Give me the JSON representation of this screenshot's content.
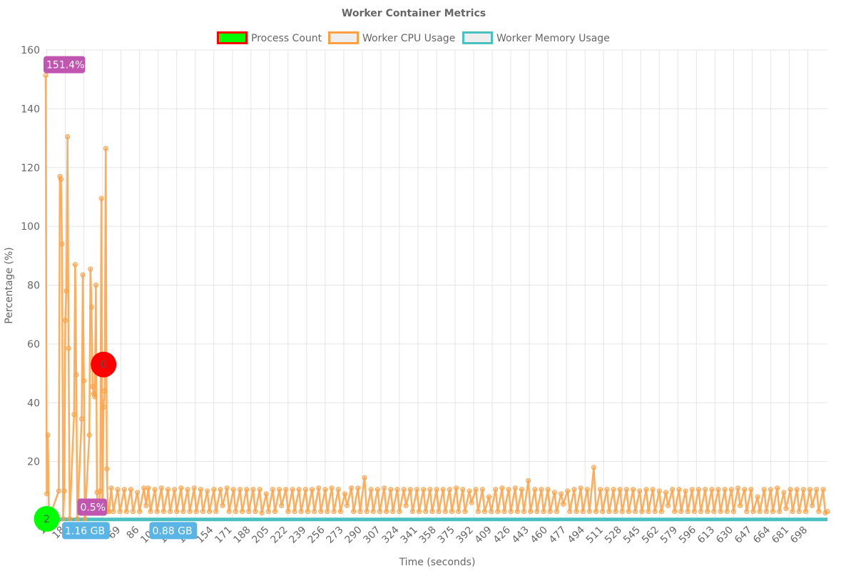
{
  "chart_data": {
    "type": "line",
    "title": "Worker Container Metrics",
    "xlabel": "Time (seconds)",
    "ylabel": "Percentage (%)",
    "xlim": [
      0,
      716
    ],
    "ylim": [
      0,
      160
    ],
    "y_ticks": [
      0,
      20,
      40,
      60,
      80,
      100,
      120,
      140,
      160
    ],
    "x_ticks": [
      1,
      18,
      35,
      52,
      69,
      86,
      103,
      120,
      137,
      154,
      171,
      188,
      205,
      222,
      239,
      256,
      273,
      290,
      307,
      324,
      341,
      358,
      375,
      392,
      409,
      426,
      443,
      460,
      477,
      494,
      511,
      528,
      545,
      562,
      579,
      596,
      613,
      630,
      647,
      664,
      681,
      698
    ],
    "grid": true,
    "legend_position": "top",
    "series": [
      {
        "name": "Process Count",
        "color": "#00ff00",
        "border": "#ff0000",
        "points": [
          [
            1,
            0.5
          ],
          [
            53,
            53
          ]
        ],
        "point_labels": [
          "2",
          "0"
        ],
        "point_colors": [
          "#00ff00",
          "#ff0000"
        ]
      },
      {
        "name": "Worker CPU Usage",
        "color": "#ff9f40",
        "points": [
          [
            0,
            151.4
          ],
          [
            1,
            9
          ],
          [
            2,
            29
          ],
          [
            3,
            0.5
          ],
          [
            12,
            10
          ],
          [
            13,
            117
          ],
          [
            14,
            116
          ],
          [
            15,
            94
          ],
          [
            16,
            0.5
          ],
          [
            17,
            10
          ],
          [
            18,
            68
          ],
          [
            19,
            78
          ],
          [
            20,
            130.5
          ],
          [
            21,
            58.5
          ],
          [
            22,
            0.5
          ],
          [
            26,
            36
          ],
          [
            27,
            87
          ],
          [
            28,
            49.5
          ],
          [
            29,
            0.5
          ],
          [
            33,
            34.5
          ],
          [
            34,
            83.5
          ],
          [
            35,
            47.5
          ],
          [
            36,
            0.5
          ],
          [
            40,
            29
          ],
          [
            41,
            85.5
          ],
          [
            42,
            72.5
          ],
          [
            43,
            45.5
          ],
          [
            44,
            43
          ],
          [
            45,
            42
          ],
          [
            46,
            80
          ],
          [
            47,
            9.5
          ],
          [
            48,
            3
          ],
          [
            50,
            10
          ],
          [
            51,
            109.5
          ],
          [
            52,
            3.5
          ],
          [
            53,
            38.5
          ],
          [
            54,
            44
          ],
          [
            55,
            126.5
          ],
          [
            56,
            17.5
          ],
          [
            57,
            3
          ],
          [
            58,
            3
          ],
          [
            60,
            11
          ],
          [
            62,
            3
          ],
          [
            66,
            10.5
          ],
          [
            68,
            3
          ],
          [
            72,
            10.5
          ],
          [
            74,
            3
          ],
          [
            78,
            10.5
          ],
          [
            80,
            3
          ],
          [
            84,
            9.5
          ],
          [
            86,
            3
          ],
          [
            90,
            11
          ],
          [
            92,
            5
          ],
          [
            94,
            11
          ],
          [
            96,
            3
          ],
          [
            100,
            10.5
          ],
          [
            102,
            3
          ],
          [
            106,
            11
          ],
          [
            108,
            3
          ],
          [
            112,
            10.5
          ],
          [
            114,
            3
          ],
          [
            118,
            10.5
          ],
          [
            120,
            3
          ],
          [
            124,
            11
          ],
          [
            126,
            3
          ],
          [
            130,
            10.5
          ],
          [
            132,
            3
          ],
          [
            136,
            11
          ],
          [
            138,
            3
          ],
          [
            142,
            10.5
          ],
          [
            144,
            3
          ],
          [
            148,
            10
          ],
          [
            150,
            3
          ],
          [
            154,
            10.5
          ],
          [
            156,
            3
          ],
          [
            160,
            10.5
          ],
          [
            162,
            5
          ],
          [
            166,
            11
          ],
          [
            168,
            3
          ],
          [
            172,
            10.5
          ],
          [
            174,
            3
          ],
          [
            178,
            10.5
          ],
          [
            180,
            3
          ],
          [
            184,
            10.5
          ],
          [
            186,
            3
          ],
          [
            190,
            10.5
          ],
          [
            192,
            3
          ],
          [
            196,
            10.5
          ],
          [
            198,
            2.5
          ],
          [
            202,
            9
          ],
          [
            204,
            3
          ],
          [
            208,
            10.5
          ],
          [
            210,
            3
          ],
          [
            214,
            10.5
          ],
          [
            216,
            5
          ],
          [
            220,
            10.5
          ],
          [
            222,
            3
          ],
          [
            226,
            10.5
          ],
          [
            228,
            3
          ],
          [
            232,
            10.5
          ],
          [
            234,
            3
          ],
          [
            238,
            10.5
          ],
          [
            240,
            3
          ],
          [
            244,
            10.5
          ],
          [
            246,
            3
          ],
          [
            250,
            11
          ],
          [
            252,
            3
          ],
          [
            256,
            10.5
          ],
          [
            258,
            3
          ],
          [
            262,
            11
          ],
          [
            264,
            3
          ],
          [
            268,
            10.5
          ],
          [
            270,
            3
          ],
          [
            274,
            9
          ],
          [
            276,
            5
          ],
          [
            280,
            11
          ],
          [
            282,
            3
          ],
          [
            286,
            11
          ],
          [
            288,
            3
          ],
          [
            292,
            14.5
          ],
          [
            294,
            3
          ],
          [
            298,
            10.5
          ],
          [
            300,
            3
          ],
          [
            304,
            10.5
          ],
          [
            306,
            3
          ],
          [
            310,
            11
          ],
          [
            312,
            3
          ],
          [
            316,
            10.5
          ],
          [
            318,
            3
          ],
          [
            322,
            10.5
          ],
          [
            324,
            3
          ],
          [
            328,
            10.5
          ],
          [
            330,
            5
          ],
          [
            334,
            10.5
          ],
          [
            336,
            3
          ],
          [
            340,
            10.5
          ],
          [
            342,
            3
          ],
          [
            346,
            10.5
          ],
          [
            348,
            3
          ],
          [
            352,
            10.5
          ],
          [
            354,
            3
          ],
          [
            358,
            10.5
          ],
          [
            360,
            3
          ],
          [
            364,
            10.5
          ],
          [
            366,
            3
          ],
          [
            370,
            10.5
          ],
          [
            372,
            3
          ],
          [
            376,
            11
          ],
          [
            378,
            3
          ],
          [
            382,
            10.5
          ],
          [
            384,
            3
          ],
          [
            388,
            10
          ],
          [
            390,
            6
          ],
          [
            394,
            10.5
          ],
          [
            396,
            3
          ],
          [
            400,
            10.5
          ],
          [
            402,
            3
          ],
          [
            406,
            8
          ],
          [
            408,
            3
          ],
          [
            412,
            10.5
          ],
          [
            414,
            3
          ],
          [
            418,
            11
          ],
          [
            420,
            3
          ],
          [
            424,
            10.5
          ],
          [
            426,
            3
          ],
          [
            430,
            11
          ],
          [
            432,
            3
          ],
          [
            436,
            10.5
          ],
          [
            438,
            3
          ],
          [
            442,
            13.5
          ],
          [
            444,
            3
          ],
          [
            448,
            10.5
          ],
          [
            450,
            3
          ],
          [
            454,
            10.5
          ],
          [
            456,
            3
          ],
          [
            460,
            10.5
          ],
          [
            462,
            3
          ],
          [
            466,
            9.5
          ],
          [
            468,
            3
          ],
          [
            472,
            9
          ],
          [
            474,
            5.5
          ],
          [
            478,
            10
          ],
          [
            480,
            3
          ],
          [
            484,
            10.5
          ],
          [
            486,
            3
          ],
          [
            490,
            11
          ],
          [
            492,
            3
          ],
          [
            496,
            10.5
          ],
          [
            498,
            3
          ],
          [
            502,
            18
          ],
          [
            504,
            3
          ],
          [
            508,
            10.5
          ],
          [
            510,
            3
          ],
          [
            514,
            10.5
          ],
          [
            516,
            3
          ],
          [
            520,
            10.5
          ],
          [
            522,
            3
          ],
          [
            526,
            10.5
          ],
          [
            528,
            3
          ],
          [
            532,
            10.5
          ],
          [
            534,
            3
          ],
          [
            538,
            10.5
          ],
          [
            540,
            3
          ],
          [
            544,
            10
          ],
          [
            546,
            3
          ],
          [
            550,
            10.5
          ],
          [
            552,
            3
          ],
          [
            556,
            10.5
          ],
          [
            558,
            3
          ],
          [
            562,
            10
          ],
          [
            564,
            3
          ],
          [
            568,
            9.5
          ],
          [
            570,
            5
          ],
          [
            574,
            10.5
          ],
          [
            576,
            3
          ],
          [
            580,
            10.5
          ],
          [
            582,
            3
          ],
          [
            586,
            10
          ],
          [
            588,
            3
          ],
          [
            592,
            10.5
          ],
          [
            594,
            3
          ],
          [
            598,
            10.5
          ],
          [
            600,
            3
          ],
          [
            604,
            10.5
          ],
          [
            606,
            3
          ],
          [
            610,
            10.5
          ],
          [
            612,
            3
          ],
          [
            616,
            10.5
          ],
          [
            618,
            3
          ],
          [
            622,
            10.5
          ],
          [
            624,
            3
          ],
          [
            628,
            10.5
          ],
          [
            630,
            3
          ],
          [
            634,
            11
          ],
          [
            636,
            5
          ],
          [
            640,
            10.5
          ],
          [
            642,
            3
          ],
          [
            646,
            10.5
          ],
          [
            648,
            3
          ],
          [
            652,
            8
          ],
          [
            654,
            3
          ],
          [
            658,
            10.5
          ],
          [
            660,
            3
          ],
          [
            664,
            10.5
          ],
          [
            666,
            3
          ],
          [
            670,
            11
          ],
          [
            672,
            3
          ],
          [
            676,
            9.5
          ],
          [
            678,
            4
          ],
          [
            682,
            10.5
          ],
          [
            684,
            3
          ],
          [
            688,
            10.5
          ],
          [
            690,
            3
          ],
          [
            694,
            10.5
          ],
          [
            696,
            3
          ],
          [
            700,
            10.5
          ],
          [
            702,
            5
          ],
          [
            706,
            10.5
          ],
          [
            708,
            3
          ],
          [
            712,
            10.5
          ],
          [
            714,
            2.5
          ],
          [
            716,
            3
          ]
        ],
        "value_labels": [
          {
            "text": "151.4%",
            "x": 0,
            "y": 155,
            "color": "#c056b0"
          },
          {
            "text": "0.5%",
            "x": 31,
            "y": 4.5,
            "color": "#c056b0"
          }
        ]
      },
      {
        "name": "Worker Memory Usage",
        "color": "#4bc0c0",
        "points": [
          [
            0,
            0.3
          ],
          [
            716,
            0.3
          ]
        ],
        "value_labels": [
          {
            "text": "1.16 GB",
            "x": 17,
            "y": -3.5,
            "color": "#5ab4e6"
          },
          {
            "text": "0.88 GB",
            "x": 97,
            "y": -3.5,
            "color": "#5ab4e6"
          }
        ]
      }
    ]
  }
}
